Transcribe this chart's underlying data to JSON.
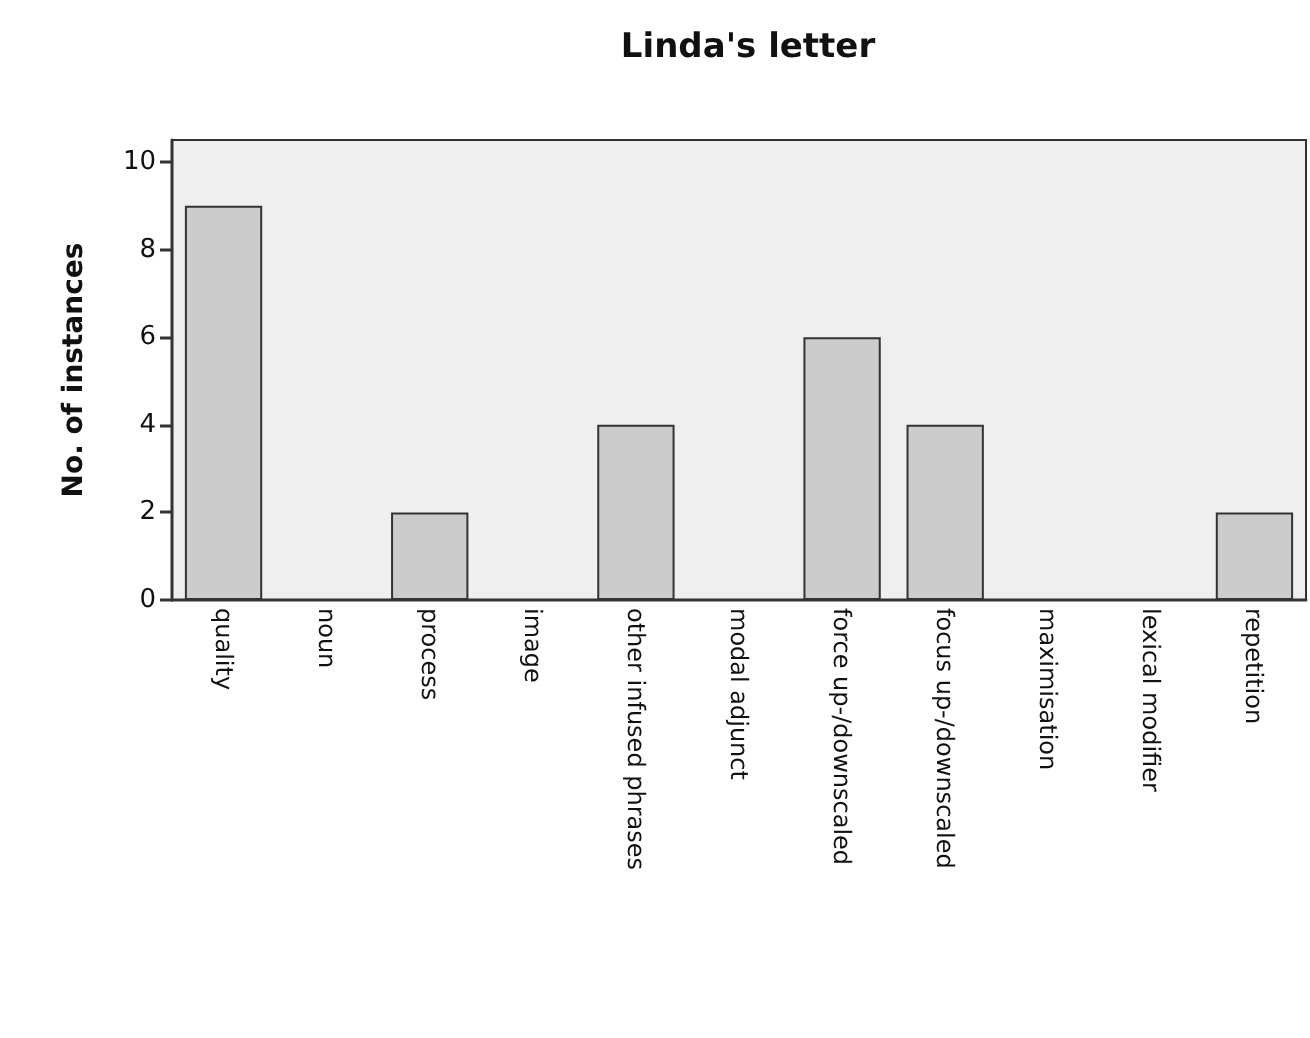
{
  "chart_data": {
    "type": "bar",
    "title": "Linda's letter",
    "ylabel": "No. of instances",
    "categories": [
      "quality",
      "noun",
      "process",
      "image",
      "other infused phrases",
      "modal adjunct",
      "force up-/downscaled",
      "focus up-/downscaled",
      "maximisation",
      "lexical modifier",
      "repetition"
    ],
    "values": [
      9,
      0,
      2,
      0,
      4,
      0,
      6,
      4,
      0,
      0,
      2
    ],
    "color": "#cccccc",
    "ylim": [
      0,
      10.5
    ],
    "yticks": [
      0,
      2,
      4,
      6,
      8,
      10
    ],
    "grid": false
  }
}
